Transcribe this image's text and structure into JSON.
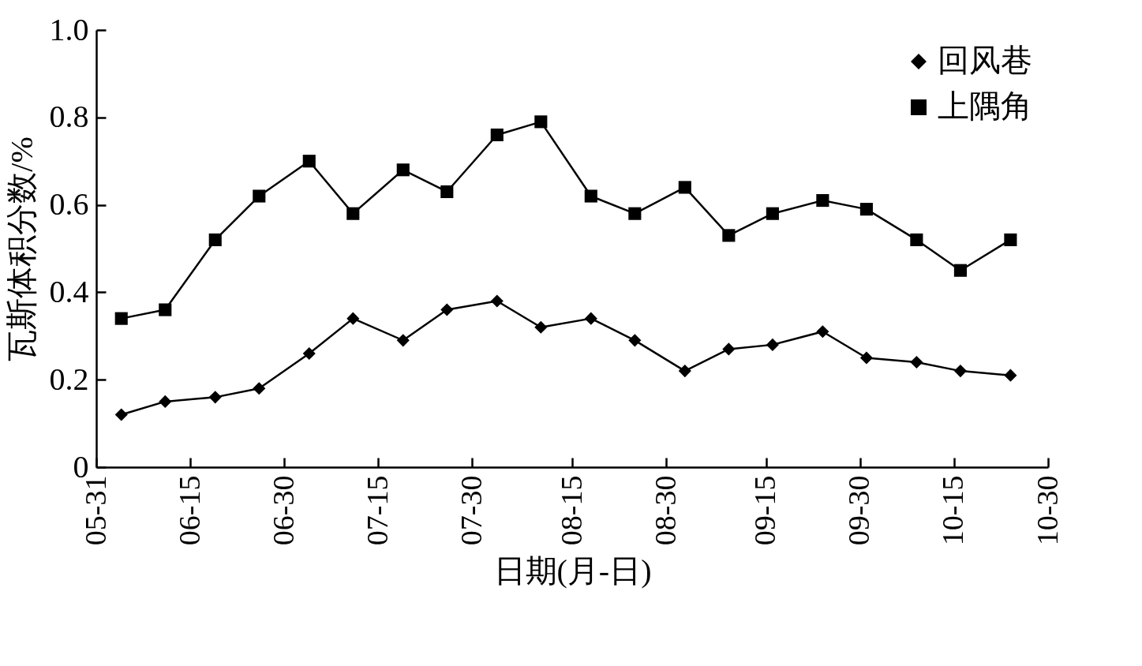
{
  "chart_data": {
    "type": "line",
    "xlabel": "日期(月-日)",
    "ylabel": "瓦斯体积分数/%",
    "x": [
      "--06-04",
      "--06-11",
      "--06-19",
      "--06-26",
      "--07-04",
      "--07-11",
      "--07-19",
      "--07-26",
      "--08-03",
      "--08-10",
      "--08-18",
      "--08-25",
      "--09-02",
      "--09-09",
      "--09-16",
      "--09-24",
      "--10-01",
      "--10-09",
      "--10-16",
      "--10-24"
    ],
    "xlim": [
      "--05-31",
      "--10-30"
    ],
    "xticks": [
      {
        "value": "--05-31",
        "label": "05-31"
      },
      {
        "value": "--06-15",
        "label": "06-15"
      },
      {
        "value": "--06-30",
        "label": "06-30"
      },
      {
        "value": "--07-15",
        "label": "07-15"
      },
      {
        "value": "--07-30",
        "label": "07-30"
      },
      {
        "value": "--08-15",
        "label": "08-15"
      },
      {
        "value": "--08-30",
        "label": "08-30"
      },
      {
        "value": "--09-15",
        "label": "09-15"
      },
      {
        "value": "--09-30",
        "label": "09-30"
      },
      {
        "value": "--10-15",
        "label": "10-15"
      },
      {
        "value": "--10-30",
        "label": "10-30"
      }
    ],
    "ylim": [
      0,
      1
    ],
    "yticks": [
      0,
      0.2,
      0.4,
      0.6,
      0.8,
      {
        "value": 1,
        "label": "1.0"
      }
    ],
    "grid": false,
    "legend": "top right",
    "series": [
      {
        "name": "回风巷",
        "color": "#000000",
        "marker": "diamond",
        "values": [
          0.12,
          0.15,
          0.16,
          0.18,
          0.26,
          0.34,
          0.29,
          0.36,
          0.38,
          0.32,
          0.34,
          0.29,
          0.22,
          0.27,
          0.28,
          0.31,
          0.25,
          0.24,
          0.22,
          0.21
        ]
      },
      {
        "name": "上隅角",
        "color": "#000000",
        "marker": "square",
        "values": [
          0.34,
          0.36,
          0.52,
          0.62,
          0.7,
          0.58,
          0.68,
          0.63,
          0.76,
          0.79,
          0.62,
          0.58,
          0.64,
          0.53,
          0.58,
          0.61,
          0.59,
          0.52,
          0.45,
          0.52
        ]
      }
    ]
  }
}
